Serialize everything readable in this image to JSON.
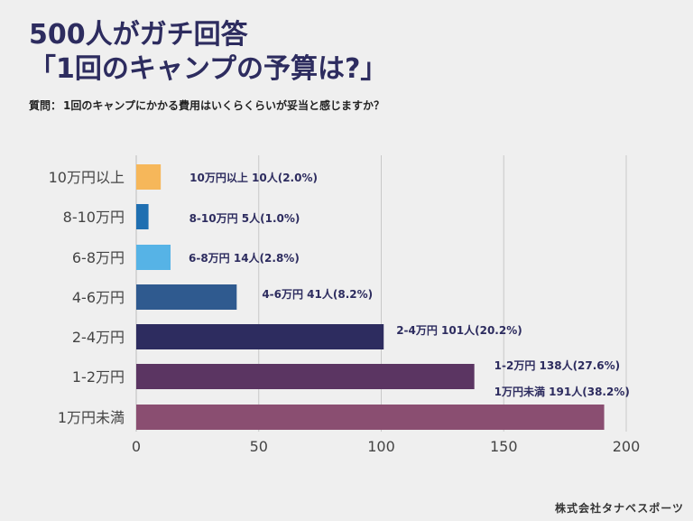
{
  "title": {
    "line1": "500人がガチ回答",
    "line2": "「1回のキャンプの予算は?」"
  },
  "question": {
    "prefix": "質問：",
    "text": "1回のキャンプにかかる費用はいくらくらいが妥当と感じますか？"
  },
  "footer": "株式会社タナベスポーツ",
  "chart_data": {
    "type": "bar",
    "orientation": "horizontal",
    "categories": [
      "10万円以上",
      "8-10万円",
      "6-8万円",
      "4-6万円",
      "2-4万円",
      "1-2万円",
      "1万円未満"
    ],
    "values": [
      10,
      5,
      14,
      41,
      101,
      138,
      191
    ],
    "data_labels": [
      "10万円以上  10人(2.0%)",
      "8-10万円  5人(1.0%)",
      "6-8万円  14人(2.8%)",
      "4-6万円 41人(8.2%)",
      "2-4万円 101人(20.2%)",
      "1-2万円 138人(27.6%)",
      "1万円未満 191人(38.2%)"
    ],
    "colors": [
      "#f6b75a",
      "#1f6fb1",
      "#56b3e6",
      "#2f5a8f",
      "#2d2c5f",
      "#5b3562",
      "#8a4e71"
    ],
    "xlim": [
      0,
      200
    ],
    "xticks": [
      0,
      50,
      100,
      150,
      200
    ],
    "grid": true,
    "legend": "none"
  }
}
